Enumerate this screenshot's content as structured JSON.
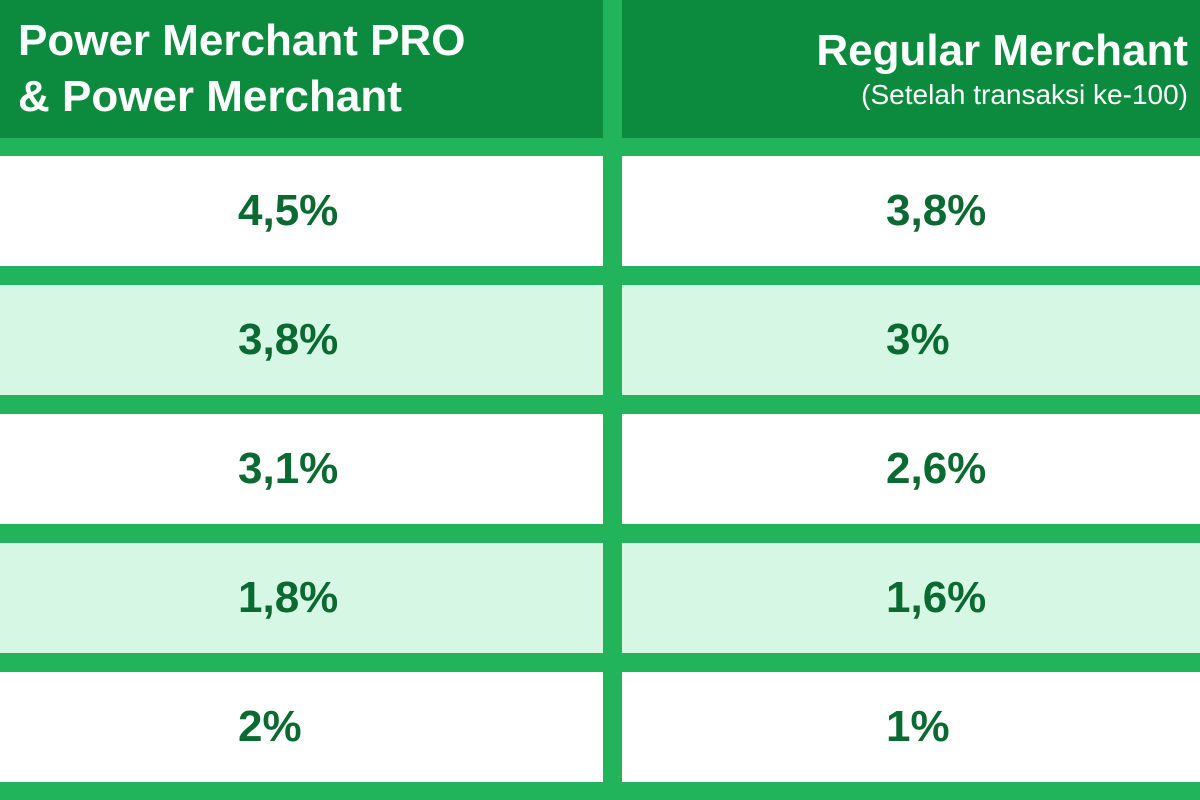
{
  "header": {
    "left_line1": "Power Merchant PRO",
    "left_line2": "& Power Merchant",
    "right_title": "Regular Merchant",
    "right_subtitle": "(Setelah transaksi ke-100)"
  },
  "rows": [
    {
      "left": "4,5%",
      "right": "3,8%"
    },
    {
      "left": "3,8%",
      "right": "3%"
    },
    {
      "left": "3,1%",
      "right": "2,6%"
    },
    {
      "left": "1,8%",
      "right": "1,6%"
    },
    {
      "left": "2%",
      "right": "1%"
    }
  ],
  "colors": {
    "header_bg": "#0c8a3e",
    "divider": "#22b45a",
    "row_alt": "#d6f7e4",
    "text": "#0b6a32"
  }
}
